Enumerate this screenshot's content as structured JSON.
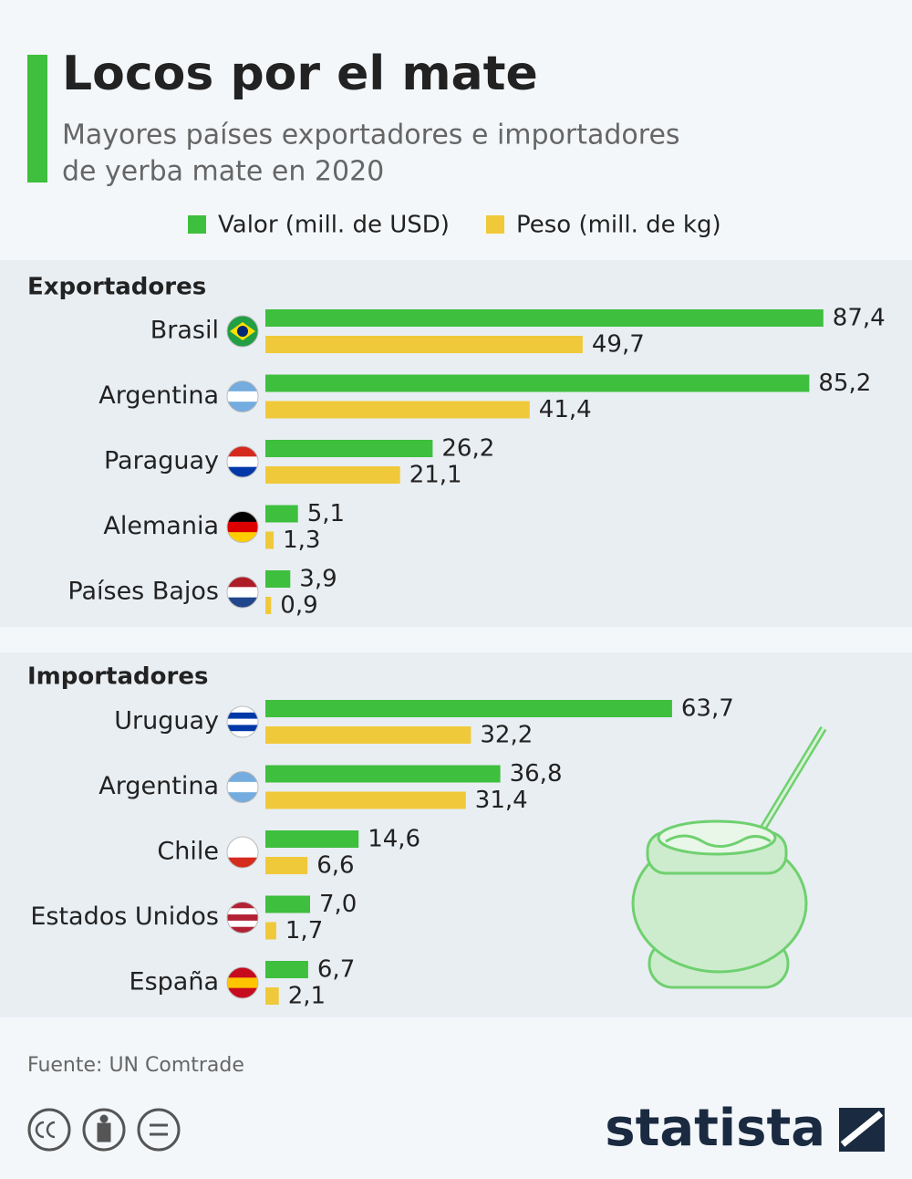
{
  "title": "Locos por el mate",
  "subtitle": [
    "Mayores países exportadores e importadores",
    "de yerba mate en 2020"
  ],
  "source": "Fuente: UN Comtrade",
  "brand": "statista",
  "chart_data": [
    {
      "type": "bar",
      "orientation": "horizontal",
      "section": "Exportadores",
      "categories": [
        "Brasil",
        "Argentina",
        "Paraguay",
        "Alemania",
        "Países Bajos"
      ],
      "series": [
        {
          "name": "Valor (mill. de USD)",
          "color": "#3ebf3e",
          "values": [
            87.4,
            85.2,
            26.2,
            5.1,
            3.9
          ],
          "value_labels": [
            "87,4",
            "85,2",
            "26,2",
            "5,1",
            "3,9"
          ]
        },
        {
          "name": "Peso (mill. de kg)",
          "color": "#f0c93a",
          "values": [
            49.7,
            41.4,
            21.1,
            1.3,
            0.9
          ],
          "value_labels": [
            "49,7",
            "41,4",
            "21,1",
            "1,3",
            "0,9"
          ]
        }
      ]
    },
    {
      "type": "bar",
      "orientation": "horizontal",
      "section": "Importadores",
      "categories": [
        "Uruguay",
        "Argentina",
        "Chile",
        "Estados Unidos",
        "España"
      ],
      "series": [
        {
          "name": "Valor (mill. de USD)",
          "color": "#3ebf3e",
          "values": [
            63.7,
            36.8,
            14.6,
            7.0,
            6.7
          ],
          "value_labels": [
            "63,7",
            "36,8",
            "14,6",
            "7,0",
            "6,7"
          ]
        },
        {
          "name": "Peso (mill. de kg)",
          "color": "#f0c93a",
          "values": [
            32.2,
            31.4,
            6.6,
            1.7,
            2.1
          ],
          "value_labels": [
            "32,2",
            "31,4",
            "6,6",
            "1,7",
            "2,1"
          ]
        }
      ]
    }
  ]
}
